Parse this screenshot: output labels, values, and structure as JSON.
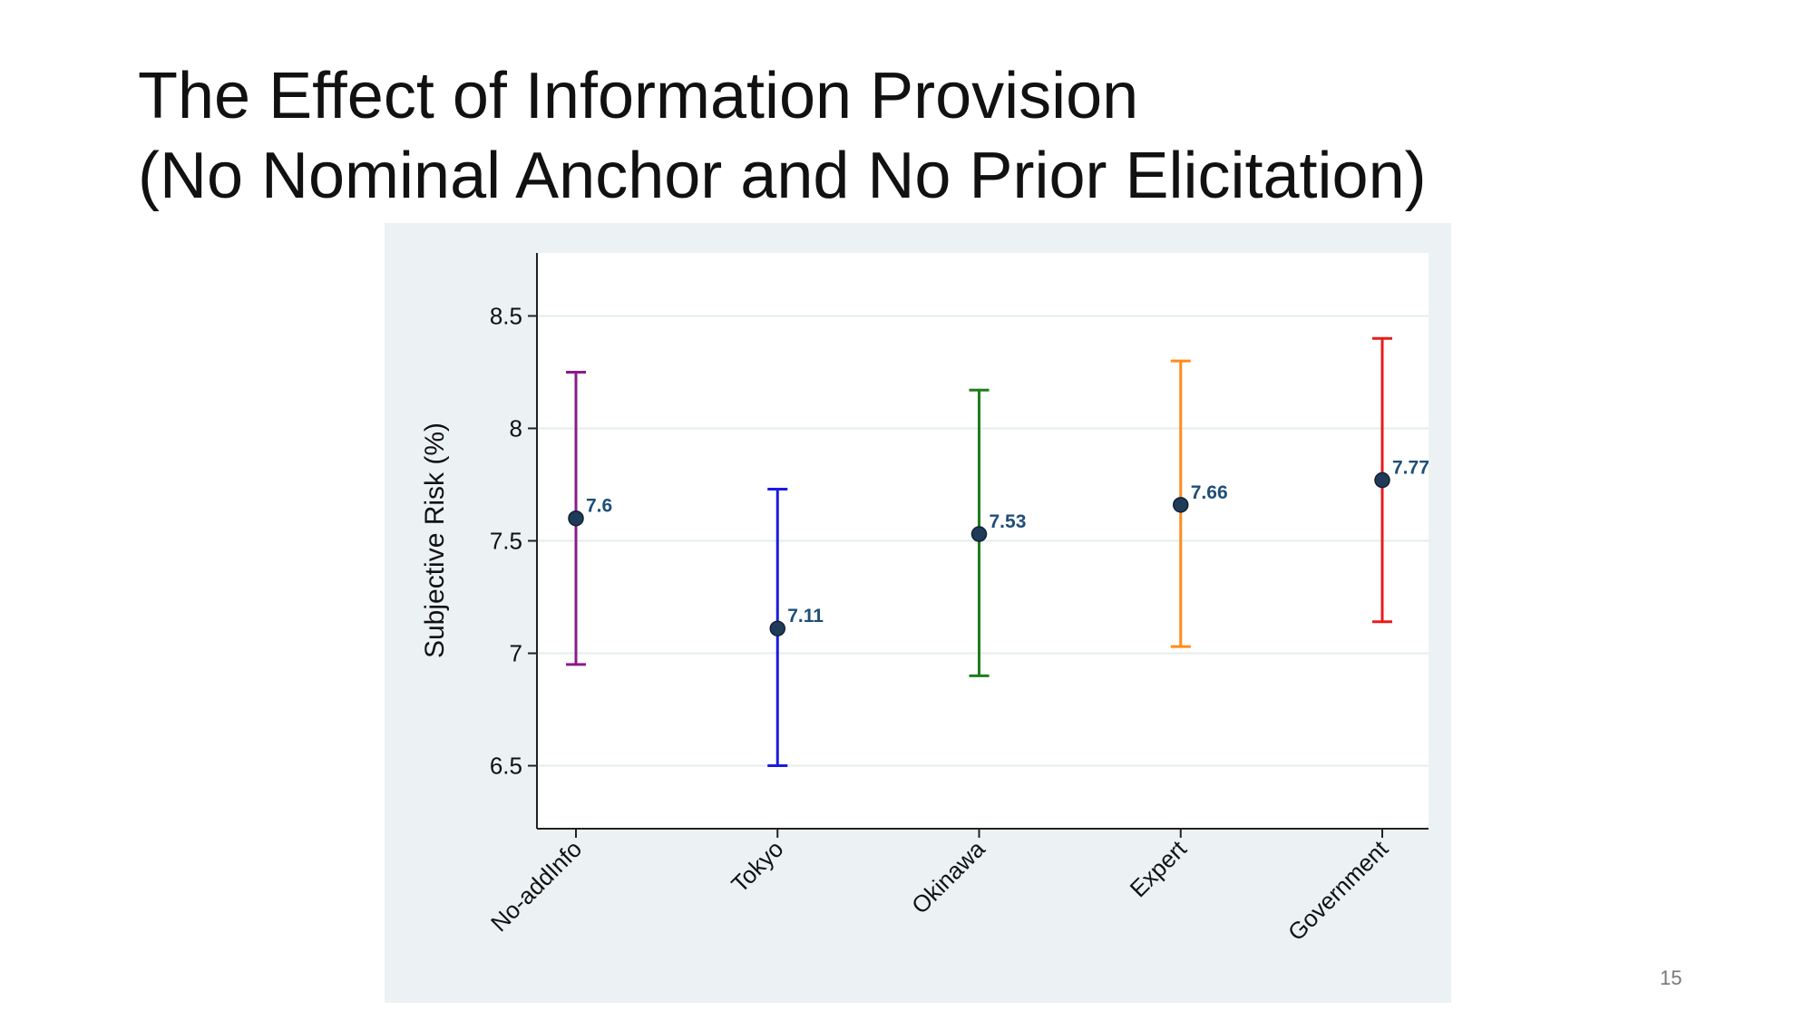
{
  "slide": {
    "title_line1": "The Effect of Information Provision",
    "title_line2": "(No Nominal Anchor and No Prior Elicitation)",
    "page_number": "15"
  },
  "chart_data": {
    "type": "scatter",
    "subtype": "point-with-error-bars",
    "title": "",
    "xlabel": "",
    "ylabel": "Subjective Risk (%)",
    "ylim": [
      6.22,
      8.78
    ],
    "yticks": [
      6.5,
      7,
      7.5,
      8,
      8.5
    ],
    "ytick_labels": [
      "6.5",
      "7",
      "7.5",
      "8",
      "8.5"
    ],
    "grid": true,
    "categories": [
      "No-addInfo",
      "Tokyo",
      "Okinawa",
      "Expert",
      "Government"
    ],
    "values": [
      7.6,
      7.11,
      7.53,
      7.66,
      7.77
    ],
    "value_labels": [
      "7.6",
      "7.11",
      "7.53",
      "7.66",
      "7.77"
    ],
    "ci_lower": [
      6.95,
      6.5,
      6.9,
      7.03,
      7.14
    ],
    "ci_upper": [
      8.25,
      7.73,
      8.17,
      8.3,
      8.4
    ],
    "colors": [
      "#8b1a8b",
      "#1a1adf",
      "#1e7d1e",
      "#ff8c1a",
      "#e81c1c"
    ],
    "marker_color": "#1f3b57",
    "plot_background": "#ffffff",
    "outer_background": "#ecf1f3",
    "grid_color": "#e4ecee"
  }
}
